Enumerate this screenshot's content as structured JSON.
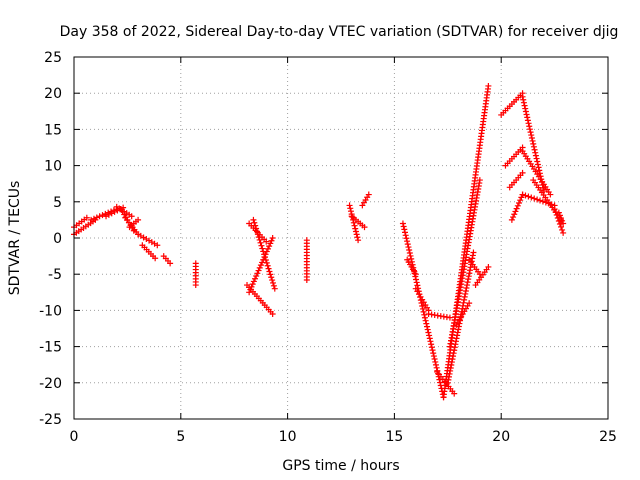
{
  "chart_data": {
    "type": "scatter",
    "title": "Day 358 of 2022, Sidereal Day-to-day VTEC variation (SDTVAR) for receiver djig",
    "xlabel": "GPS time / hours",
    "ylabel": "SDTVAR / TECUs",
    "xlim": [
      0,
      25
    ],
    "ylim": [
      -25,
      25
    ],
    "xticks": [
      0,
      5,
      10,
      15,
      20,
      25
    ],
    "yticks": [
      -25,
      -20,
      -15,
      -10,
      -5,
      0,
      5,
      10,
      15,
      20,
      25
    ],
    "grid": true,
    "marker": "plus",
    "color": "#ff0000",
    "series": [
      {
        "segments": [
          {
            "x0": 0.0,
            "x1": 1.0,
            "y0": 0.5,
            "y1": 2.5
          },
          {
            "x0": 0.0,
            "x1": 0.6,
            "y0": 1.5,
            "y1": 2.8
          },
          {
            "x0": 0.8,
            "x1": 2.0,
            "y0": 2.5,
            "y1": 4.0
          },
          {
            "x0": 1.5,
            "x1": 2.3,
            "y0": 3.0,
            "y1": 4.2
          },
          {
            "x0": 2.0,
            "x1": 2.7,
            "y0": 4.3,
            "y1": 3.0
          },
          {
            "x0": 2.2,
            "x1": 2.8,
            "y0": 4.0,
            "y1": 1.0
          },
          {
            "x0": 2.4,
            "x1": 3.0,
            "y0": 2.8,
            "y1": 0.5
          },
          {
            "x0": 2.6,
            "x1": 3.0,
            "y0": 1.5,
            "y1": 2.5
          },
          {
            "x0": 3.0,
            "x1": 3.9,
            "y0": 0.5,
            "y1": -1.0
          },
          {
            "x0": 3.2,
            "x1": 3.8,
            "y0": -1.0,
            "y1": -2.8
          },
          {
            "x0": 4.2,
            "x1": 4.5,
            "y0": -2.5,
            "y1": -3.5
          },
          {
            "x0": 5.7,
            "x1": 5.7,
            "y0": -3.5,
            "y1": -6.5
          },
          {
            "x0": 8.1,
            "x1": 9.3,
            "y0": -6.5,
            "y1": -10.5
          },
          {
            "x0": 8.2,
            "x1": 9.3,
            "y0": -7.5,
            "y1": 0.0
          },
          {
            "x0": 8.4,
            "x1": 9.4,
            "y0": 2.5,
            "y1": -7.0
          },
          {
            "x0": 8.2,
            "x1": 9.0,
            "y0": 2.0,
            "y1": -0.5
          },
          {
            "x0": 10.9,
            "x1": 10.9,
            "y0": -0.3,
            "y1": -5.8
          },
          {
            "x0": 12.9,
            "x1": 13.3,
            "y0": 4.5,
            "y1": -0.3
          },
          {
            "x0": 13.0,
            "x1": 13.6,
            "y0": 3.0,
            "y1": 1.5
          },
          {
            "x0": 13.5,
            "x1": 13.8,
            "y0": 4.5,
            "y1": 6.0
          },
          {
            "x0": 15.4,
            "x1": 17.3,
            "y0": 2.0,
            "y1": -22.0
          },
          {
            "x0": 15.6,
            "x1": 16.0,
            "y0": -3.0,
            "y1": -5.0
          },
          {
            "x0": 16.0,
            "x1": 16.6,
            "y0": -7.0,
            "y1": -10.0
          },
          {
            "x0": 16.6,
            "x1": 17.6,
            "y0": -10.5,
            "y1": -11.0
          },
          {
            "x0": 17.0,
            "x1": 17.8,
            "y0": -18.5,
            "y1": -21.5
          },
          {
            "x0": 17.3,
            "x1": 19.4,
            "y0": -22.0,
            "y1": 21.0
          },
          {
            "x0": 17.5,
            "x1": 18.7,
            "y0": -20.0,
            "y1": -2.0
          },
          {
            "x0": 17.6,
            "x1": 19.0,
            "y0": -15.0,
            "y1": 8.0
          },
          {
            "x0": 17.9,
            "x1": 18.5,
            "y0": -12.0,
            "y1": -9.0
          },
          {
            "x0": 18.5,
            "x1": 19.0,
            "y0": -3.0,
            "y1": -5.0
          },
          {
            "x0": 18.8,
            "x1": 19.4,
            "y0": -6.5,
            "y1": -4.0
          },
          {
            "x0": 20.0,
            "x1": 21.0,
            "y0": 17.0,
            "y1": 20.0
          },
          {
            "x0": 20.2,
            "x1": 21.0,
            "y0": 10.0,
            "y1": 12.5
          },
          {
            "x0": 20.4,
            "x1": 21.0,
            "y0": 7.0,
            "y1": 9.0
          },
          {
            "x0": 20.5,
            "x1": 21.0,
            "y0": 2.5,
            "y1": 6.0
          },
          {
            "x0": 21.0,
            "x1": 22.0,
            "y0": 19.5,
            "y1": 6.5
          },
          {
            "x0": 21.0,
            "x1": 22.3,
            "y0": 12.0,
            "y1": 6.0
          },
          {
            "x0": 21.0,
            "x1": 22.5,
            "y0": 6.0,
            "y1": 4.5
          },
          {
            "x0": 21.5,
            "x1": 22.8,
            "y0": 8.0,
            "y1": 2.5
          },
          {
            "x0": 22.5,
            "x1": 22.9,
            "y0": 4.0,
            "y1": 0.7
          },
          {
            "x0": 22.7,
            "x1": 22.9,
            "y0": 3.5,
            "y1": 2.0
          }
        ]
      }
    ]
  }
}
